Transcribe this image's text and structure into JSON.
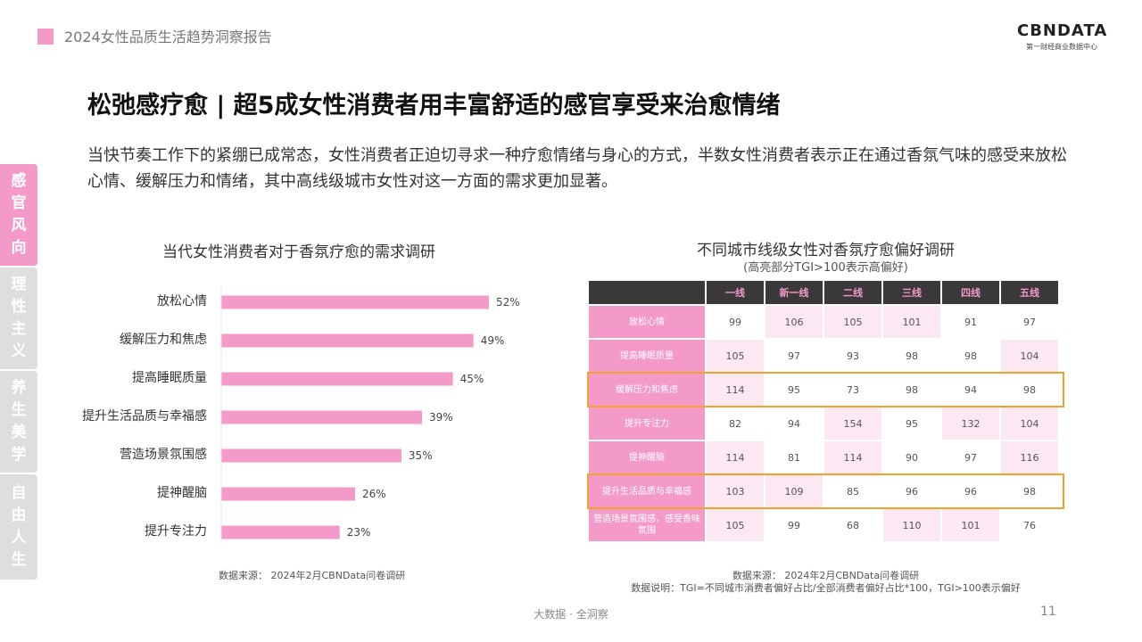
{
  "header": {
    "report_title": "2024女性品质生活趋势洞察报告"
  },
  "logo": {
    "main": "CBNDATA",
    "sub": "第一财经商业数据中心"
  },
  "page_title": "松弛感疗愈 | 超5成女性消费者用丰富舒适的感官享受来治愈情绪",
  "intro": "当快节奏工作下的紧绷已成常态，女性消费者正迫切寻求一种疗愈情绪与身心的方式，半数女性消费者表示正在通过香氛气味的感受来放松心情、缓解压力和情绪，其中高线级城市女性对这一方面的需求更加显著。",
  "side_tabs": [
    {
      "label": "感官风向",
      "active": true
    },
    {
      "label": "理性主义",
      "active": false
    },
    {
      "label": "养生美学",
      "active": false
    },
    {
      "label": "自由人生",
      "active": false
    }
  ],
  "colors": {
    "accent": "#f49ac9",
    "highlight_cell": "#fce8f3",
    "header_dark": "#3a3838",
    "outline": "#f0a22a"
  },
  "chart_data": [
    {
      "type": "bar",
      "orientation": "horizontal",
      "title": "当代女性消费者对于香氛疗愈的需求调研",
      "categories": [
        "放松心情",
        "缓解压力和焦虑",
        "提高睡眠质量",
        "提升生活品质与幸福感",
        "营造场景氛围感",
        "提神醒脑",
        "提升专注力"
      ],
      "values": [
        52,
        49,
        45,
        39,
        35,
        26,
        23
      ],
      "value_suffix": "%",
      "xlim": [
        0,
        60
      ],
      "grid": false,
      "source": "数据来源： 2024年2月CBNData问卷调研"
    },
    {
      "type": "table",
      "title": "不同城市线级女性对香氛疗愈偏好调研",
      "subtitle": "(高亮部分TGI>100表示高偏好)",
      "columns": [
        "一线",
        "新一线",
        "二线",
        "三线",
        "四线",
        "五线"
      ],
      "rows": [
        {
          "label": "放松心情",
          "values": [
            99,
            106,
            105,
            101,
            91,
            97
          ],
          "highlighted": false
        },
        {
          "label": "提高睡眠质量",
          "values": [
            105,
            97,
            93,
            98,
            98,
            104
          ],
          "highlighted": false
        },
        {
          "label": "缓解压力和焦虑",
          "values": [
            114,
            95,
            73,
            98,
            94,
            98
          ],
          "highlighted": true
        },
        {
          "label": "提升专注力",
          "values": [
            82,
            94,
            154,
            95,
            132,
            104
          ],
          "highlighted": false
        },
        {
          "label": "提神醒脑",
          "values": [
            114,
            81,
            114,
            90,
            97,
            116
          ],
          "highlighted": false
        },
        {
          "label": "提升生活品质与幸福感",
          "values": [
            103,
            109,
            85,
            96,
            96,
            98
          ],
          "highlighted": true
        },
        {
          "label": "营造场景氛围感，感受香味氛围",
          "values": [
            105,
            99,
            68,
            110,
            101,
            76
          ],
          "highlighted": false
        }
      ],
      "highlight_threshold": 100,
      "source": "数据来源： 2024年2月CBNData问卷调研",
      "note": "数据说明：TGI=不同城市消费者偏好占比/全部消费者偏好占比*100，TGI>100表示偏好"
    }
  ],
  "footer": {
    "text": "大数据 · 全洞察",
    "page_number": "11"
  }
}
